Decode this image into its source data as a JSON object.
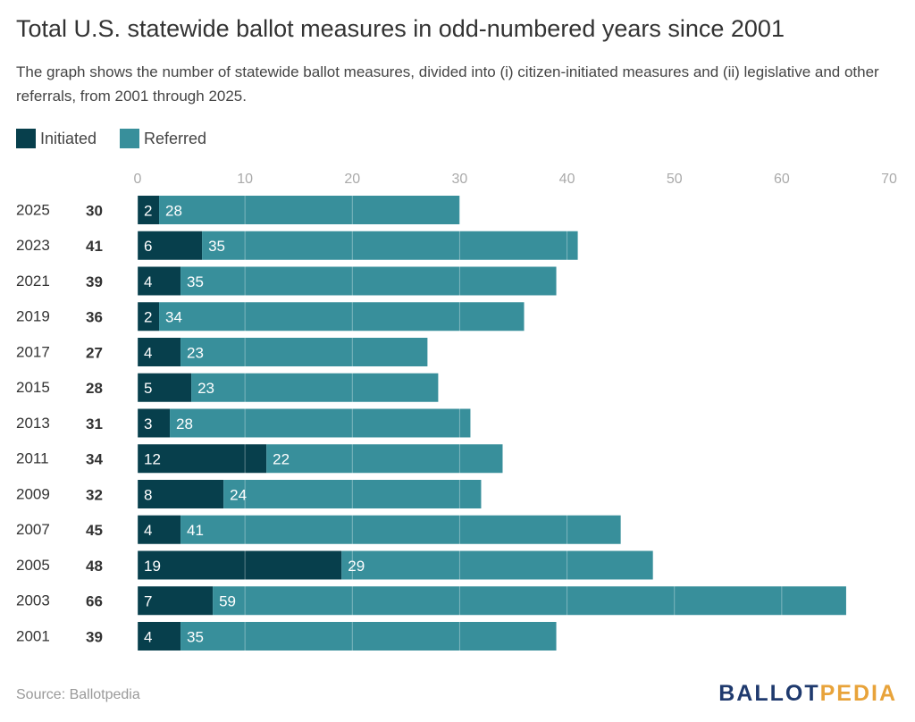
{
  "chart_data": {
    "type": "stacked-bar",
    "title": "Total U.S. statewide ballot measures in odd-numbered years since 2001",
    "subtitle": "The graph shows the number of statewide ballot measures, divided into (i) citizen-initiated measures and (ii) legislative and other referrals, from 2001 through 2025.",
    "categories": [
      "2025",
      "2023",
      "2021",
      "2019",
      "2017",
      "2015",
      "2013",
      "2011",
      "2009",
      "2007",
      "2005",
      "2003",
      "2001"
    ],
    "totals": [
      30,
      41,
      39,
      36,
      27,
      28,
      31,
      34,
      32,
      45,
      48,
      66,
      39
    ],
    "series": [
      {
        "name": "Initiated",
        "color": "#073f4c",
        "values": [
          2,
          6,
          4,
          2,
          4,
          5,
          3,
          12,
          8,
          4,
          19,
          7,
          4
        ]
      },
      {
        "name": "Referred",
        "color": "#388f9b",
        "values": [
          28,
          35,
          35,
          34,
          23,
          23,
          28,
          22,
          24,
          41,
          29,
          59,
          35
        ]
      }
    ],
    "xlim": [
      0,
      70
    ],
    "xticks": [
      0,
      10,
      20,
      30,
      40,
      50,
      60,
      70
    ],
    "grid": true,
    "source": "Source: Ballotpedia",
    "logo": [
      "BALLOT",
      "PEDIA"
    ]
  }
}
